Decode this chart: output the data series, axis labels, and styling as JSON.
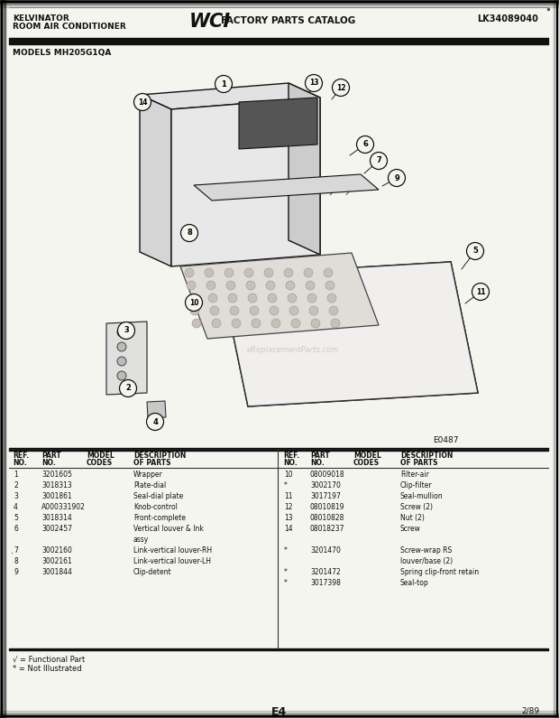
{
  "title_left_line1": "KELVINATOR",
  "title_left_line2": "ROOM AIR CONDITIONER",
  "title_right": "LK34089040",
  "model_text": "MODELS MH205G1QA",
  "watermark": "eReplacementParts.com",
  "diagram_code": "E0487",
  "page_code": "E4",
  "page_date": "2/89",
  "bg_color": "#f0f0f0",
  "text_color": "#111111",
  "footnote1": "√ = Functional Part",
  "footnote2": "* = Not Illustrated",
  "left_entries": [
    [
      "1",
      "3201605",
      "Wrapper"
    ],
    [
      "2",
      "3018313",
      "Plate-dial"
    ],
    [
      "3",
      "3001861",
      "Seal-dial plate"
    ],
    [
      "4",
      "A000331902",
      "Knob-control"
    ],
    [
      "5",
      "3018314",
      "Front-complete"
    ],
    [
      "6",
      "3002457",
      "Vertical louver & lnk"
    ],
    [
      "",
      "",
      "assy"
    ],
    [
      "7",
      "3002160",
      "Link-vertical louver-RH"
    ],
    [
      "8",
      "3002161",
      "Link-vertical louver-LH"
    ],
    [
      "9",
      "3001844",
      "Clip-detent"
    ]
  ],
  "right_entries": [
    [
      "10",
      "08009018",
      "Filter-air"
    ],
    [
      "*",
      "3002170",
      "Clip-filter"
    ],
    [
      "11",
      "3017197",
      "Seal-mullion"
    ],
    [
      "12",
      "08010819",
      "Screw (2)"
    ],
    [
      "13",
      "08010828",
      "Nut (2)"
    ],
    [
      "14",
      "08018237",
      "Screw"
    ],
    [
      "",
      "",
      ""
    ],
    [
      "*",
      "3201470",
      "Screw-wrap RS"
    ],
    [
      "",
      "",
      "louver/base (2)"
    ],
    [
      "*",
      "3201472",
      "Spring clip-front retain"
    ],
    [
      "*",
      "3017398",
      "Seal-top"
    ]
  ]
}
